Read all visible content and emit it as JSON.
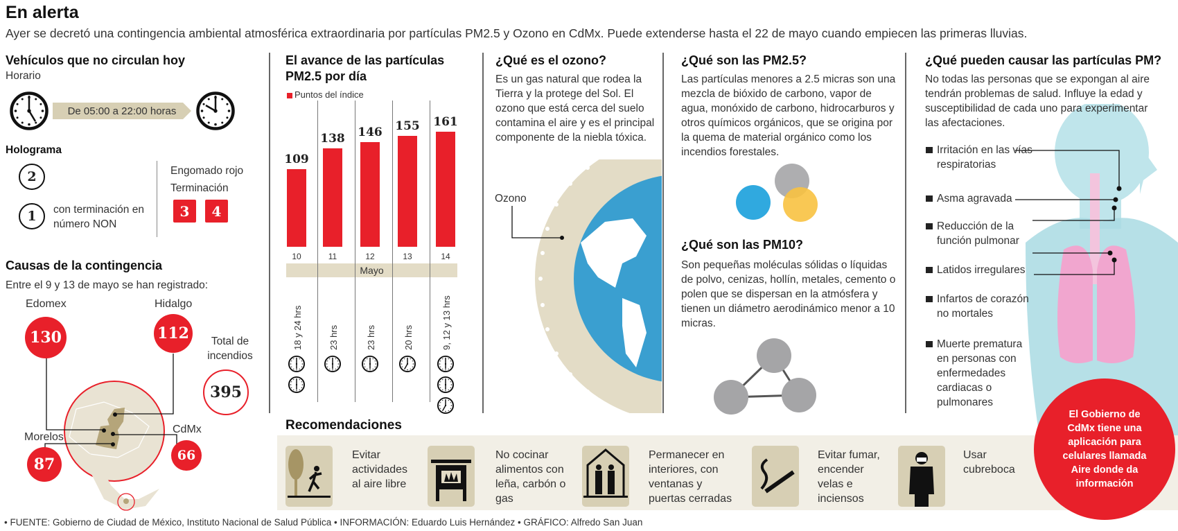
{
  "header": {
    "title": "En alerta",
    "subtitle": "Ayer se decretó una contingencia ambiental atmosférica extraordinaria por partículas PM2.5 y Ozono en CdMx. Puede extenderse hasta el 22 de mayo cuando empiecen las primeras lluvias."
  },
  "vehicles": {
    "title": "Vehículos que no circulan hoy",
    "schedule_label": "Horario",
    "schedule": "De 05:00 a 22:00 horas",
    "hologram_label": "Hologramas",
    "hologram_title": "Holograma",
    "hologram_2": "2",
    "hologram_1": "1",
    "hologram_1_note": "con terminación en número NON",
    "sticker_label": "Engomado rojo",
    "ending_label": "Terminación",
    "endings": [
      "3",
      "4"
    ]
  },
  "causes": {
    "title": "Causas de la contingencia",
    "intro": "Entre el 9 y 13 de mayo se han registrado:",
    "regions": [
      {
        "name": "Edomex",
        "value": "130"
      },
      {
        "name": "Hidalgo",
        "value": "112"
      },
      {
        "name": "Morelos",
        "value": "87"
      },
      {
        "name": "CdMx",
        "value": "66"
      }
    ],
    "total_label": "Total de incendios",
    "total": "395"
  },
  "chart_data": {
    "type": "bar",
    "title": "El avance de las partículas PM2.5 por día",
    "legend": "Puntos del índice",
    "categories": [
      "10",
      "11",
      "12",
      "13",
      "14"
    ],
    "xlabel": "Mayo",
    "values": [
      109,
      138,
      146,
      155,
      161
    ],
    "hours": [
      "18 y 24 hrs",
      "23 hrs",
      "23 hrs",
      "20 hrs",
      "9, 12 y 13 hrs"
    ],
    "color": "#e8202a"
  },
  "ozone": {
    "title": "¿Qué es el ozono?",
    "text": "Es un gas natural que rodea la Tierra y la protege del Sol. El ozono que está cerca del suelo contamina el aire y es el principal componente de la niebla tóxica.",
    "label": "Ozono"
  },
  "pm25": {
    "title": "¿Qué son las PM2.5?",
    "text": "Las partículas menores a 2.5 micras son una mezcla de bióxido de carbono, vapor de agua, monóxido de carbono, hidrocarburos y otros químicos orgánicos, que se origina por la quema de material orgánico como los incendios forestales."
  },
  "pm10": {
    "title": "¿Qué son las PM10?",
    "text": "Son pequeñas moléculas sólidas o líquidas de polvo, cenizas, hollín, metales, cemento o polen que se dispersan en la atmósfera y tienen un diámetro aerodinámico menor a 10 micras."
  },
  "effects": {
    "title": "¿Qué pueden causar las partículas PM?",
    "intro": "No todas las personas que se expongan al aire tendrán problemas de salud. Influye la edad y susceptibilidad de cada uno para experimentar las afectaciones.",
    "items": [
      "Irritación en las vías respiratorias",
      "Asma agravada",
      "Reducción de la función pulmonar",
      "Latidos irregulares",
      "Infartos de corazón no mortales",
      "Muerte prematura en personas con enfermedades cardiacas o pulmonares"
    ],
    "callout": "El Gobierno de CdMx tiene una aplicación para celulares llamada Aire donde da información"
  },
  "recommendations": {
    "title": "Recomendaciones",
    "items": [
      {
        "icon": "runner-tree-icon",
        "text": "Evitar actividades al aire libre"
      },
      {
        "icon": "stove-icon",
        "text": "No cocinar alimentos con leña, carbón o gas"
      },
      {
        "icon": "house-people-icon",
        "text": "Permanecer en interiores, con ventanas y puertas cerradas"
      },
      {
        "icon": "cigarette-icon",
        "text": "Evitar fumar, encender velas e inciensos"
      },
      {
        "icon": "face-mask-icon",
        "text": "Usar cubreboca"
      }
    ]
  },
  "footer": {
    "credits": "• FUENTE: Gobierno de Ciudad de México, Instituto Nacional de Salud Pública • INFORMACIÓN: Eduardo Luis Hernández • GRÁFICO: Alfredo San Juan"
  },
  "colors": {
    "red": "#e8202a",
    "beige": "#d7cfb4",
    "band": "#f2efe6",
    "globe_blue": "#3a9fd0",
    "body_blue": "#a9dbe3",
    "lung_pink": "#f1a6cf"
  }
}
